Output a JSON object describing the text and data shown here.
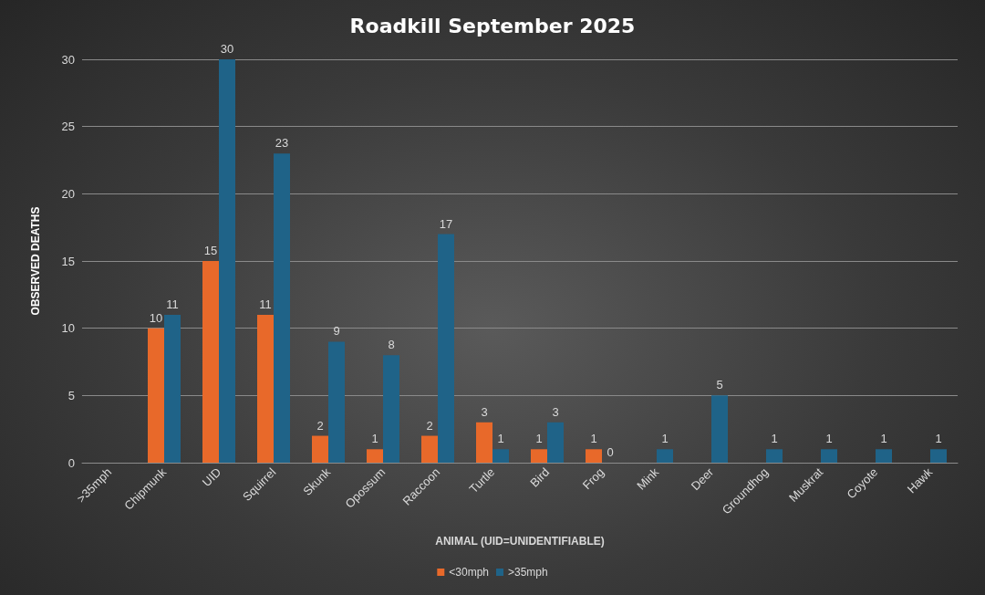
{
  "chart_data": {
    "type": "bar",
    "title": "Roadkill September 2025",
    "xlabel": "ANIMAL (UID=UNIDENTIFIABLE)",
    "ylabel": "OBSERVED DEATHS",
    "categories": [
      ">35mph",
      "Chipmunk",
      "UID",
      "Squirrel",
      "Skunk",
      "Opossum",
      "Raccoon",
      "Turtle",
      "Bird",
      "Frog",
      "Mink",
      "Deer",
      "Groundhog",
      "Muskrat",
      "Coyote",
      "Hawk"
    ],
    "series": [
      {
        "name": "<30mph",
        "color": "#e8692a",
        "values": [
          null,
          10,
          15,
          11,
          2,
          1,
          2,
          3,
          1,
          1,
          null,
          null,
          null,
          null,
          null,
          null
        ]
      },
      {
        "name": ">35mph",
        "color": "#1f6388",
        "values": [
          null,
          11,
          30,
          23,
          9,
          8,
          17,
          1,
          3,
          0,
          1,
          5,
          1,
          1,
          1,
          1
        ]
      }
    ],
    "ylim": [
      0,
      30
    ],
    "yticks": [
      0,
      5,
      10,
      15,
      20,
      25,
      30
    ],
    "grid": "y",
    "legend": "bottom",
    "data_labels": true
  }
}
